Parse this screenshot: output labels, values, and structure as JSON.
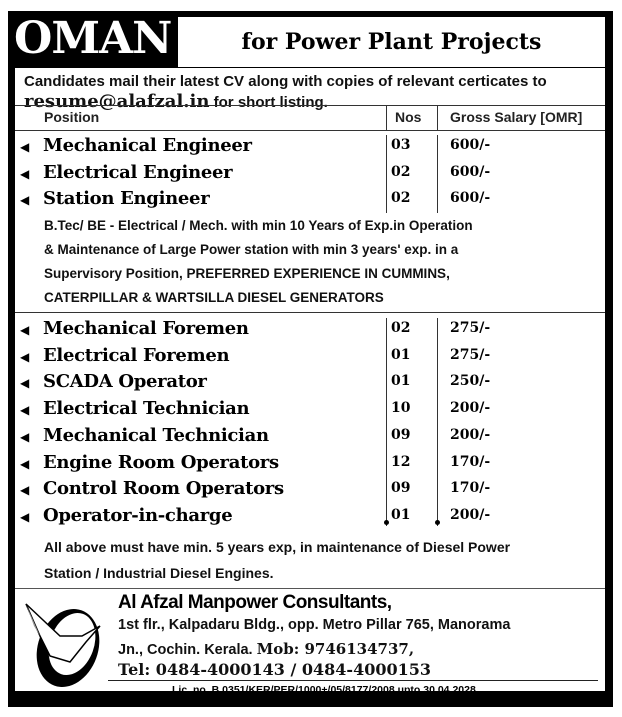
{
  "header": {
    "country": "OMAN",
    "subtitle": "for Power Plant Projects"
  },
  "intro": {
    "line1": "Candidates mail their latest CV along with copies of relevant certicates  to",
    "email": "resume@alafzal.in",
    "line2_rest": " for short listing."
  },
  "table": {
    "headers": [
      "Position",
      "Nos",
      "Gross Salary [OMR]"
    ],
    "group1": [
      {
        "position": "Mechanical Engineer",
        "nos": "03",
        "salary": "600/-"
      },
      {
        "position": "Electrical Engineer",
        "nos": "02",
        "salary": "600/-"
      },
      {
        "position": "Station Engineer",
        "nos": "02",
        "salary": "600/-"
      }
    ],
    "group1_note": [
      "B.Tec/ BE - Electrical / Mech. with min 10 Years of Exp.in Operation",
      "& Maintenance of Large Power station with min 3 years' exp. in a",
      "Supervisory Position, PREFERRED EXPERIENCE IN CUMMINS,",
      "CATERPILLAR & WARTSILLA DIESEL GENERATORS"
    ],
    "group2": [
      {
        "position": "Mechanical Foremen",
        "nos": "02",
        "salary": "275/-"
      },
      {
        "position": "Electrical Foremen",
        "nos": "01",
        "salary": "275/-"
      },
      {
        "position": "SCADA Operator",
        "nos": "01",
        "salary": "250/-"
      },
      {
        "position": "Electrical Technician",
        "nos": "10",
        "salary": "200/-"
      },
      {
        "position": "Mechanical Technician",
        "nos": "09",
        "salary": "200/-"
      },
      {
        "position": "Engine Room Operators",
        "nos": "12",
        "salary": "170/-"
      },
      {
        "position": "Control Room Operators",
        "nos": "09",
        "salary": "170/-"
      },
      {
        "position": "Operator-in-charge",
        "nos": "01",
        "salary": "200/-"
      }
    ],
    "footer_note": [
      "All above must have min. 5 years exp, in maintenance of Diesel Power",
      "Station / Industrial Diesel Engines."
    ]
  },
  "company": {
    "name": "Al Afzal Manpower Consultants,",
    "addr1": "1st flr., Kalpadaru Bldg., opp. Metro Pillar 765,  Manorama",
    "addr2": "Jn., Cochin. Kerala. ",
    "mob": "Mob: 9746134737,",
    "tel": "Tel: 0484-4000143 / 0484-4000153",
    "license": "Lic. no. B 0351/KER/PER/1000+/05/8177/2008 upto 30.04.2028",
    "logo": "dove-logo"
  }
}
